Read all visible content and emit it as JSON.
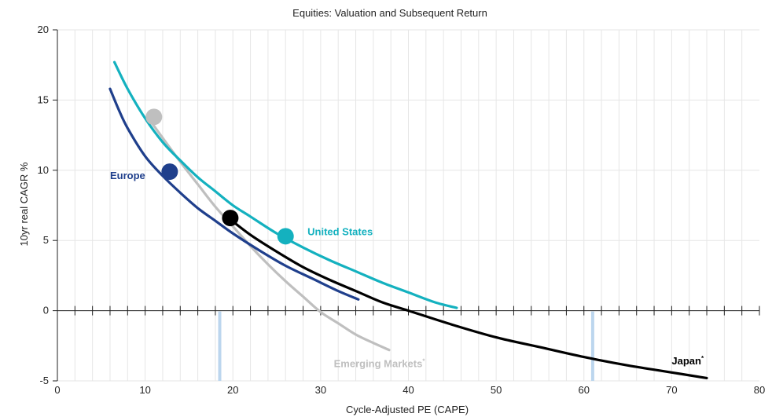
{
  "chart_data": {
    "type": "line",
    "title": "Equities: Valuation and Subsequent Return",
    "xlabel": "Cycle-Adjusted PE (CAPE)",
    "ylabel": "10yr real CAGR %",
    "xlim": [
      0,
      80
    ],
    "ylim": [
      -5,
      20
    ],
    "x_ticks": [
      0,
      10,
      20,
      30,
      40,
      50,
      60,
      70,
      80
    ],
    "y_ticks": [
      -5,
      0,
      5,
      10,
      15,
      20
    ],
    "grid": true,
    "minor_x_step": 2,
    "colors": {
      "us": "#14b1bf",
      "europe": "#1f3f8c",
      "em": "#bfbfbf",
      "japan": "#000000",
      "highlight": "#bcd6ee"
    },
    "highlight_x": [
      18.5,
      61
    ],
    "series": [
      {
        "name": "United States",
        "key": "us",
        "color": "#14b1bf",
        "x": [
          6.5,
          8,
          10,
          12,
          14,
          16,
          18,
          20,
          22,
          25,
          28,
          31,
          34,
          37,
          40,
          43,
          45.5
        ],
        "y": [
          17.7,
          15.8,
          13.7,
          12.0,
          10.7,
          9.5,
          8.5,
          7.5,
          6.7,
          5.5,
          4.5,
          3.6,
          2.8,
          2.0,
          1.3,
          0.6,
          0.2
        ],
        "marker": {
          "x": 26,
          "y": 5.3
        }
      },
      {
        "name": "Europe",
        "key": "europe",
        "color": "#1f3f8c",
        "x": [
          6,
          7,
          8,
          10,
          12,
          14,
          16,
          18,
          20,
          23,
          26,
          29,
          32,
          34.3
        ],
        "y": [
          15.8,
          14.3,
          13.0,
          11.0,
          9.6,
          8.4,
          7.3,
          6.4,
          5.5,
          4.3,
          3.2,
          2.3,
          1.4,
          0.8
        ],
        "marker": {
          "x": 12.8,
          "y": 9.9
        }
      },
      {
        "name": "Emerging Markets",
        "key": "em",
        "color": "#bfbfbf",
        "x": [
          10.5,
          12,
          14,
          16,
          18,
          20,
          22,
          24,
          26,
          28,
          30,
          32,
          34,
          36,
          37.8
        ],
        "y": [
          13.6,
          12.3,
          10.6,
          9.0,
          7.4,
          6.0,
          4.6,
          3.3,
          2.1,
          1.0,
          -0.1,
          -0.9,
          -1.7,
          -2.3,
          -2.8
        ],
        "marker": {
          "x": 11,
          "y": 13.8
        }
      },
      {
        "name": "Japan",
        "key": "japan",
        "color": "#000000",
        "x": [
          19.5,
          22,
          25,
          28,
          31,
          34,
          37,
          40,
          45,
          50,
          55,
          60,
          65,
          70,
          74
        ],
        "y": [
          6.6,
          5.4,
          4.2,
          3.1,
          2.2,
          1.4,
          0.6,
          0.0,
          -1.0,
          -1.9,
          -2.6,
          -3.3,
          -3.9,
          -4.4,
          -4.8
        ],
        "marker": {
          "x": 19.7,
          "y": 6.6
        }
      }
    ],
    "labels": [
      {
        "series": "europe",
        "text": "Europe",
        "x": 6,
        "y": 9.6,
        "superscript": ""
      },
      {
        "series": "us",
        "text": "United States",
        "x": 28.5,
        "y": 5.6,
        "superscript": ""
      },
      {
        "series": "em",
        "text": "Emerging Markets",
        "x": 31.5,
        "y": -3.8,
        "superscript": "*"
      },
      {
        "series": "japan",
        "text": "Japan",
        "x": 70,
        "y": -3.6,
        "superscript": "*"
      }
    ]
  }
}
